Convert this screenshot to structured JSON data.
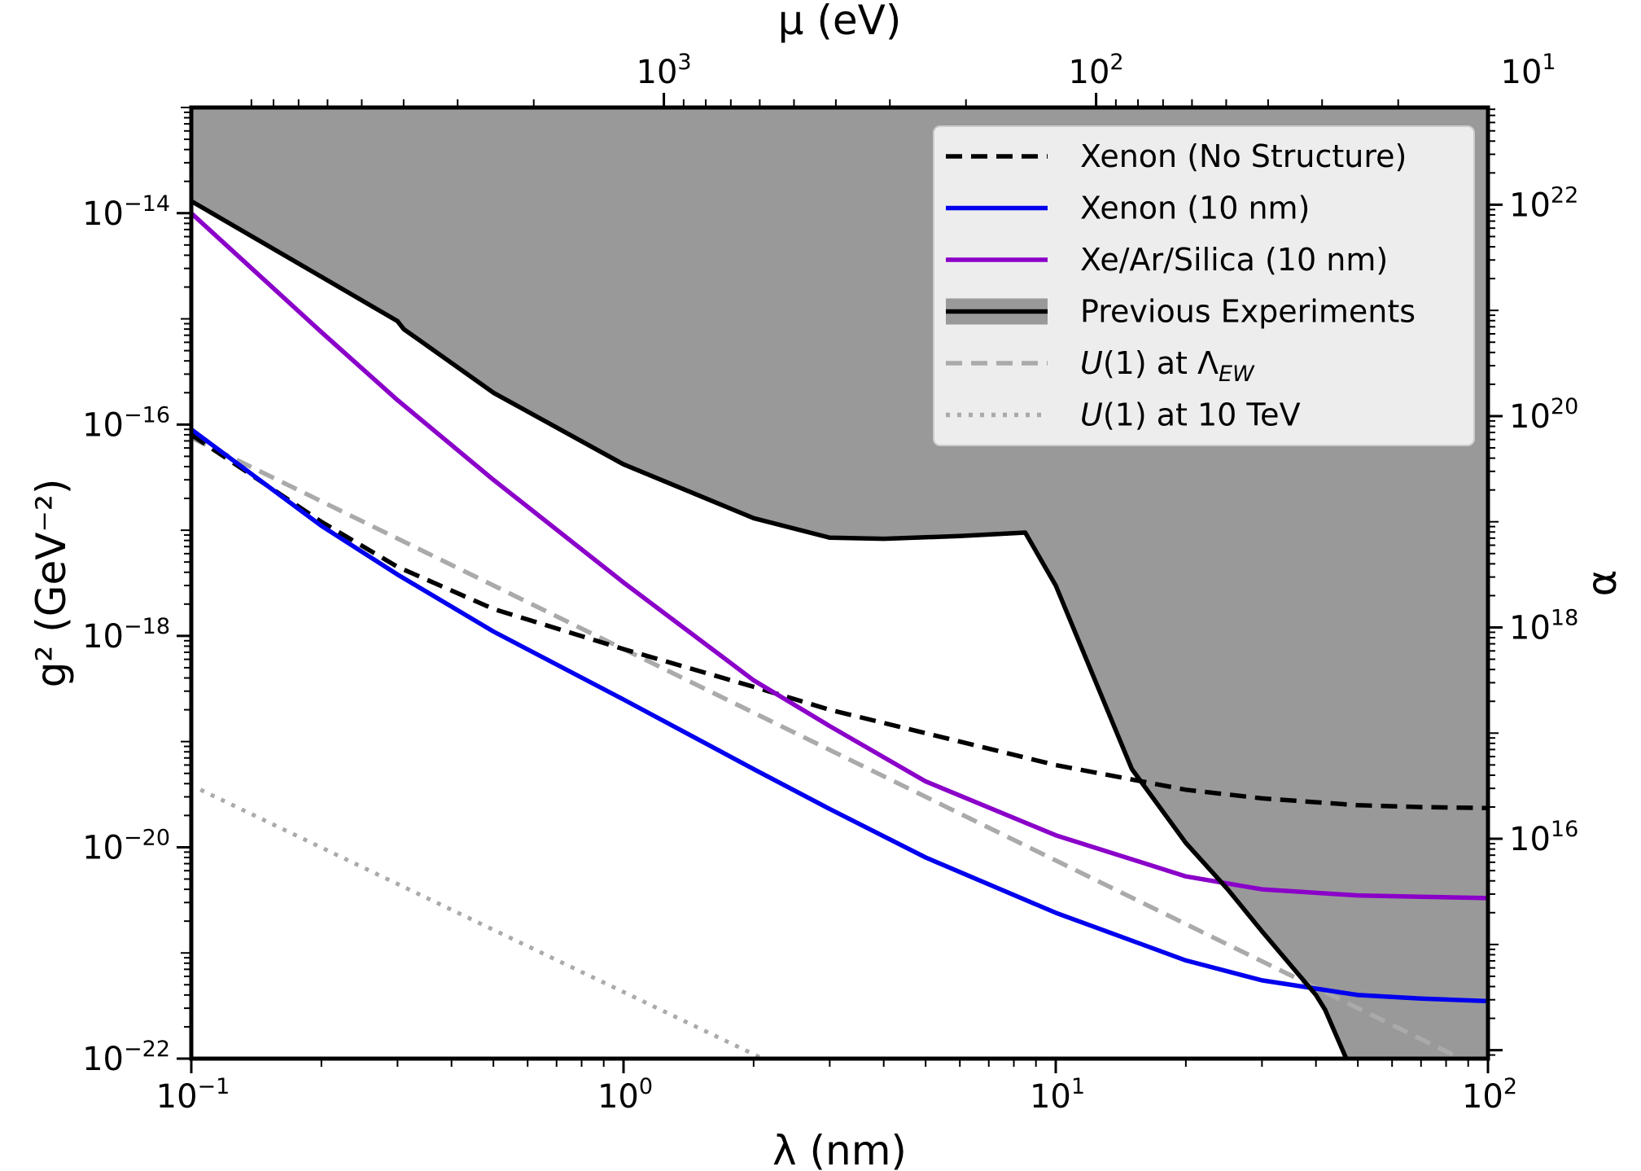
{
  "chart_data": {
    "type": "line",
    "xlabel": "λ (nm)",
    "ylabel": "g² (GeV⁻²)",
    "top_xlabel": "μ (eV)",
    "right_ylabel": "α",
    "xscale": "log",
    "yscale": "log",
    "xlim": [
      0.1,
      100
    ],
    "ylim": [
      1e-22,
      1e-13
    ],
    "x_ticks": [
      {
        "value": 0.1,
        "base": "10",
        "exp": "−1"
      },
      {
        "value": 1,
        "base": "10",
        "exp": "0"
      },
      {
        "value": 10,
        "base": "10",
        "exp": "1"
      },
      {
        "value": 100,
        "base": "10",
        "exp": "2"
      }
    ],
    "y_ticks": [
      {
        "value": 1e-14,
        "base": "10",
        "exp": "−14"
      },
      {
        "value": 1e-16,
        "base": "10",
        "exp": "−16"
      },
      {
        "value": 1e-18,
        "base": "10",
        "exp": "−18"
      },
      {
        "value": 1e-20,
        "base": "10",
        "exp": "−20"
      },
      {
        "value": 1e-22,
        "base": "10",
        "exp": "−22"
      }
    ],
    "top_ticks": [
      {
        "mu": 1000,
        "base": "10",
        "exp": "3"
      },
      {
        "mu": 100,
        "base": "10",
        "exp": "2"
      },
      {
        "mu": 10,
        "base": "10",
        "exp": "1"
      }
    ],
    "right_ticks": [
      {
        "alpha": 1e+22,
        "base": "10",
        "exp": "22"
      },
      {
        "alpha": 1e+20,
        "base": "10",
        "exp": "20"
      },
      {
        "alpha": 1e+18,
        "base": "10",
        "exp": "18"
      },
      {
        "alpha": 1e+16,
        "base": "10",
        "exp": "16"
      }
    ],
    "legend_position": "top-right",
    "series": [
      {
        "name": "Xenon (No Structure)",
        "color": "#000000",
        "style": "dashed",
        "x": [
          0.1,
          0.2,
          0.3,
          0.5,
          1,
          2,
          3,
          5,
          10,
          20,
          30,
          50,
          70,
          100
        ],
        "y": [
          8e-17,
          1.2e-17,
          4.5e-18,
          1.8e-18,
          7.5e-19,
          3.3e-19,
          2e-19,
          1.2e-19,
          6e-20,
          3.5e-20,
          2.9e-20,
          2.5e-20,
          2.4e-20,
          2.35e-20
        ]
      },
      {
        "name": "Xenon (10 nm)",
        "color": "#0000ee",
        "style": "solid",
        "x": [
          0.1,
          0.2,
          0.3,
          0.5,
          1,
          2,
          3,
          5,
          10,
          20,
          30,
          50,
          70,
          100
        ],
        "y": [
          9e-17,
          1.1e-17,
          3.8e-18,
          1.1e-18,
          2.5e-19,
          5.5e-20,
          2.3e-20,
          8e-21,
          2.4e-21,
          8.5e-22,
          5.5e-22,
          4e-22,
          3.7e-22,
          3.5e-22
        ]
      },
      {
        "name": "Xe/Ar/Silica (10 nm)",
        "color": "#8b00c9",
        "style": "solid",
        "x": [
          0.1,
          0.2,
          0.3,
          0.5,
          1,
          2,
          3,
          5,
          10,
          20,
          30,
          50,
          70,
          100
        ],
        "y": [
          1e-14,
          7.5e-16,
          1.7e-16,
          3e-17,
          3.2e-18,
          3.8e-19,
          1.4e-19,
          4.2e-20,
          1.3e-20,
          5.3e-21,
          4e-21,
          3.5e-21,
          3.4e-21,
          3.3e-21
        ]
      },
      {
        "name": "Previous Experiments",
        "color": "#000000",
        "fill": "#999999",
        "style": "solid",
        "x": [
          0.1,
          0.2,
          0.3,
          0.31,
          0.5,
          1,
          2,
          3,
          4,
          6,
          8.5,
          10,
          15,
          20,
          25,
          30,
          40,
          42,
          47
        ],
        "y": [
          1.3e-14,
          2.5e-15,
          9.5e-16,
          8e-16,
          2e-16,
          4.2e-17,
          1.3e-17,
          8.5e-18,
          8.3e-18,
          8.8e-18,
          9.5e-18,
          3e-18,
          5.5e-20,
          1.1e-20,
          4e-21,
          1.6e-21,
          4e-22,
          2.9e-22,
          1e-22
        ]
      },
      {
        "name": "U(1) at Λ_EW",
        "legend_main": "U",
        "legend_mid": "(1) at Λ",
        "legend_sub": "EW",
        "color": "#aaaaaa",
        "style": "dashed",
        "x": [
          0.1,
          100
        ],
        "y": [
          7.5e-17,
          7.5e-23
        ]
      },
      {
        "name": "U(1) at 10 TeV",
        "legend_main": "U",
        "legend_mid": "(1) at 10 TeV",
        "color": "#aaaaaa",
        "style": "dotted",
        "x": [
          0.105,
          2.1
        ],
        "y": [
          3.5e-20,
          1e-22
        ]
      }
    ],
    "grid": false
  }
}
